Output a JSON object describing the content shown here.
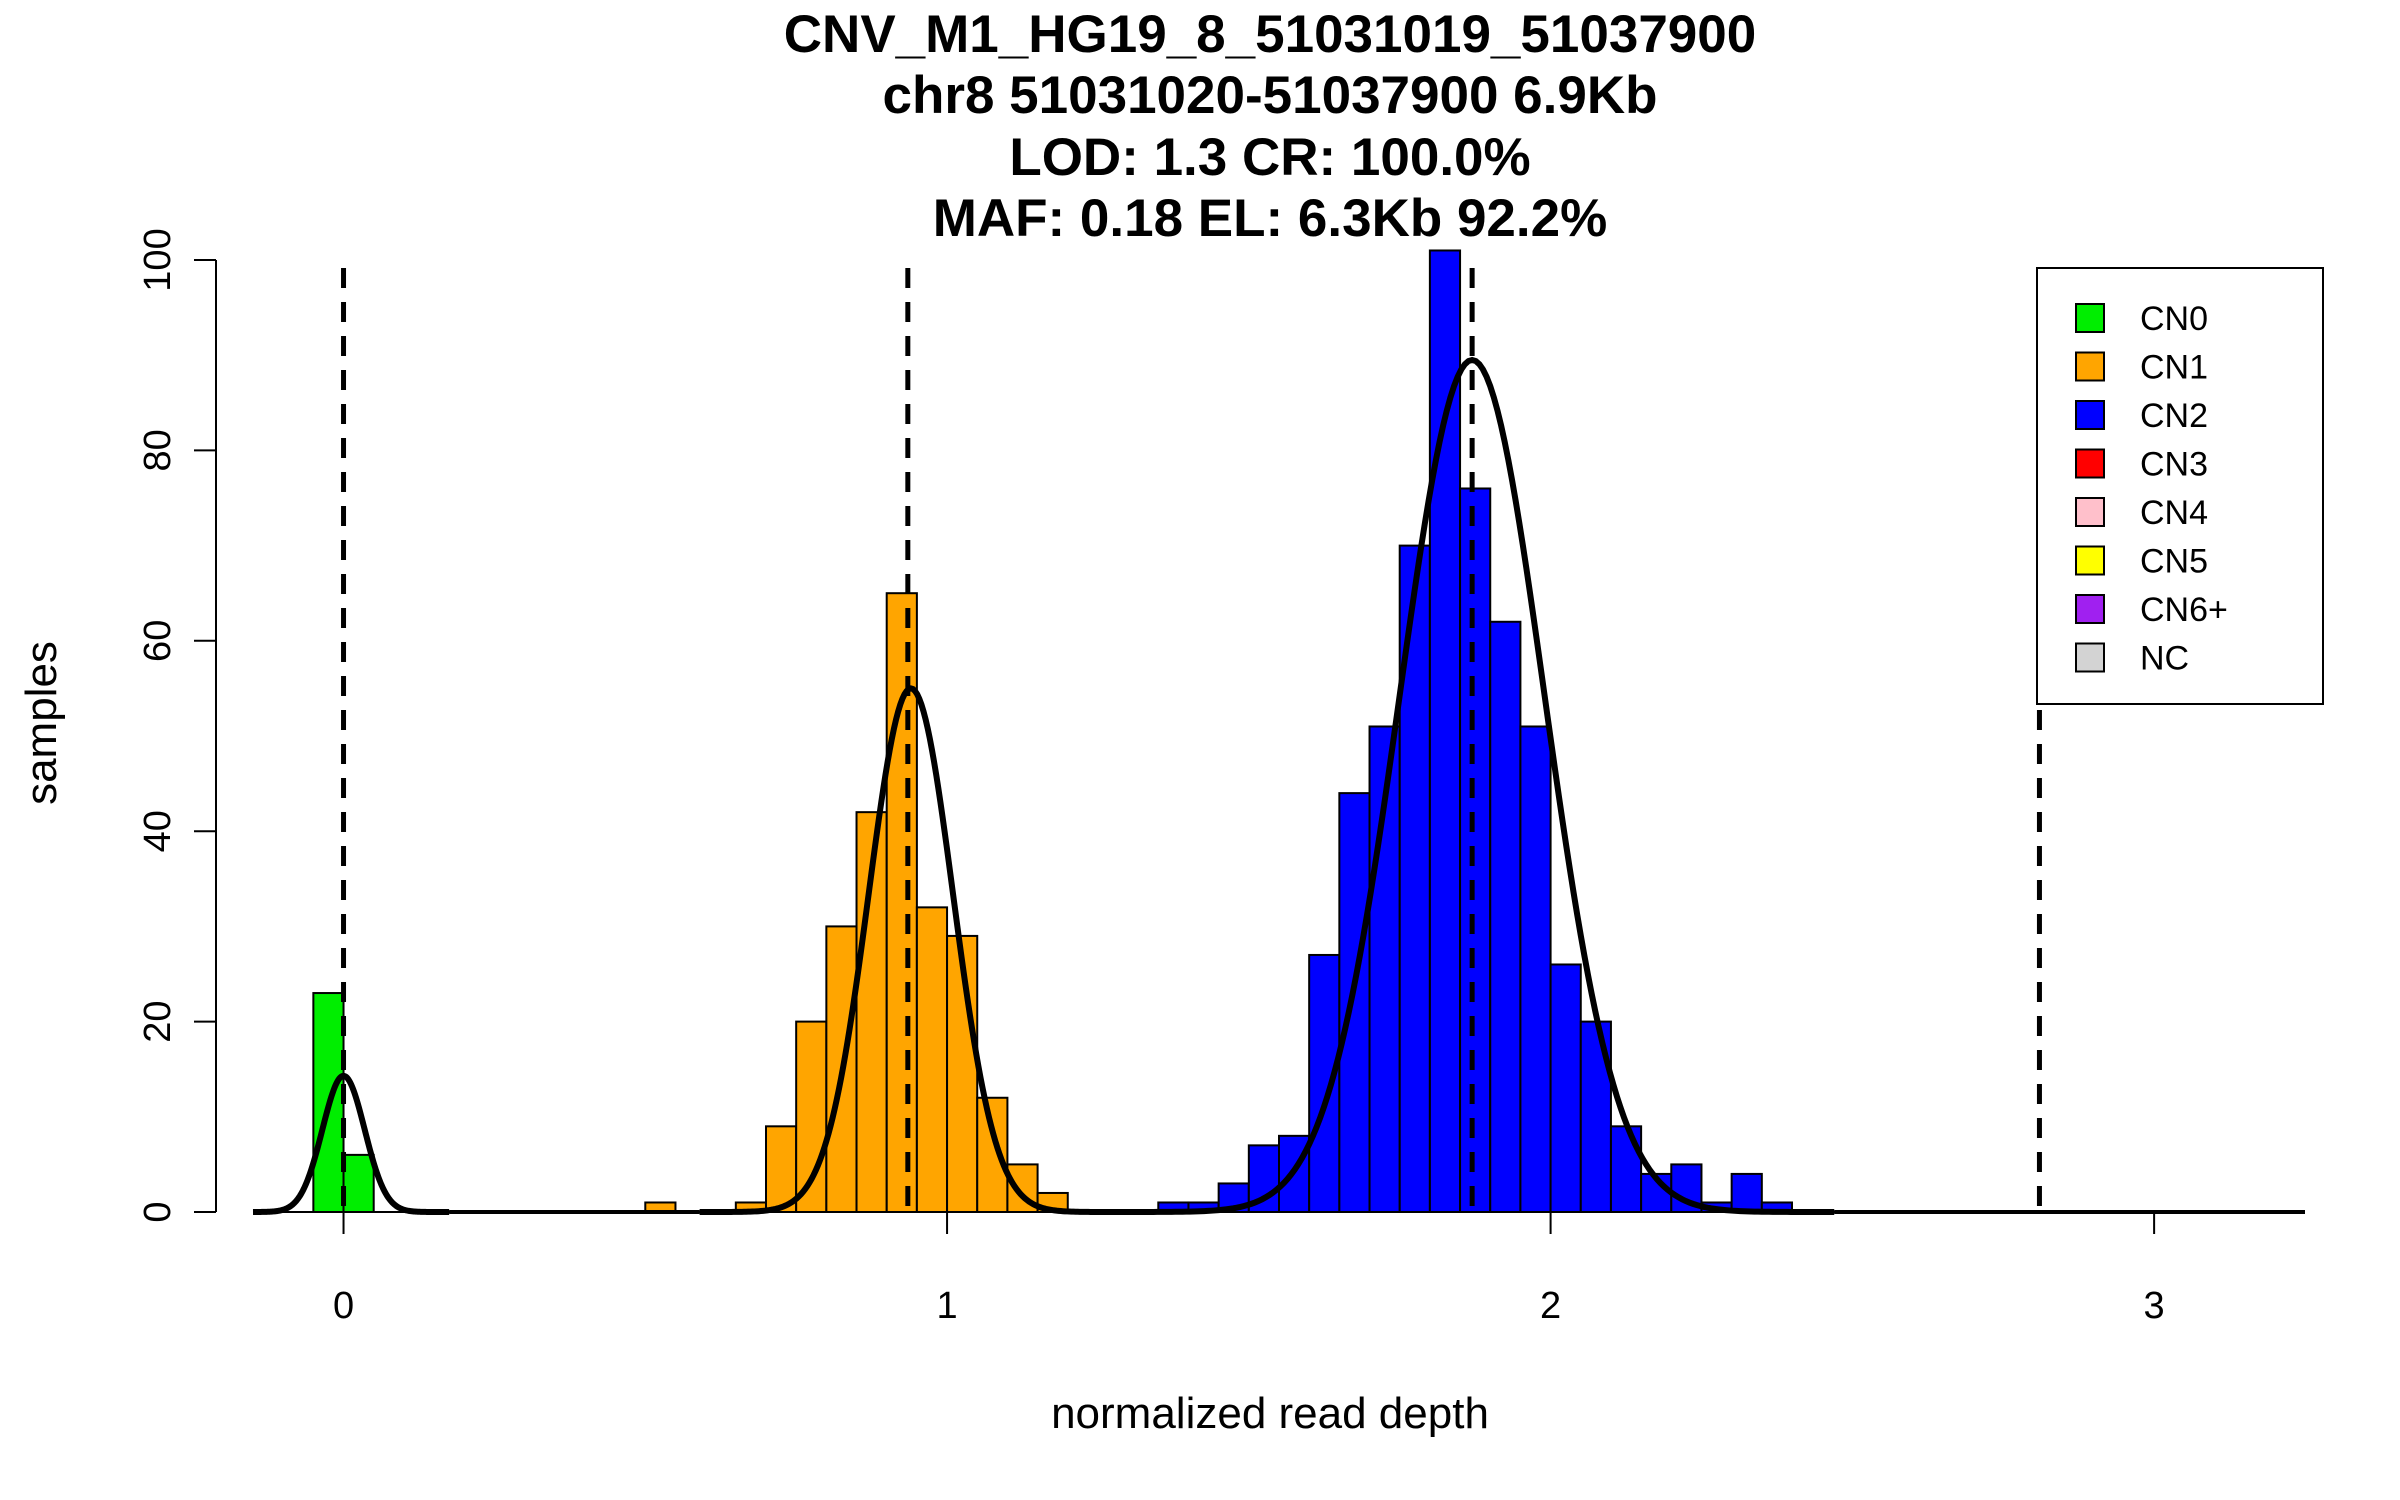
{
  "chart_data": {
    "type": "histogram",
    "title_lines": [
      "CNV_M1_HG19_8_51031019_51037900",
      "chr8 51031020-51037900 6.9Kb",
      "LOD: 1.3 CR: 100.0%",
      "MAF: 0.18 EL: 6.3Kb 92.2%"
    ],
    "xlabel": "normalized read depth",
    "ylabel": "samples",
    "xlim": [
      -0.15,
      3.25
    ],
    "ylim": [
      0,
      100
    ],
    "x_ticks": [
      0,
      1,
      2,
      3
    ],
    "x_tick_labels": [
      "0",
      "1",
      "2",
      "3"
    ],
    "y_ticks": [
      0,
      20,
      40,
      60,
      80,
      100
    ],
    "y_tick_labels": [
      "0",
      "20",
      "40",
      "60",
      "80",
      "100"
    ],
    "bin_width": 0.05,
    "series": [
      {
        "name": "CN0",
        "color": "#00ee00",
        "bins": [
          [
            -0.025,
            23
          ],
          [
            0.025,
            6
          ]
        ]
      },
      {
        "name": "CN1",
        "color": "#ffa500",
        "bins": [
          [
            0.525,
            1
          ],
          [
            0.675,
            1
          ],
          [
            0.725,
            9
          ],
          [
            0.775,
            20
          ],
          [
            0.825,
            30
          ],
          [
            0.875,
            42
          ],
          [
            0.925,
            65
          ],
          [
            0.975,
            32
          ],
          [
            1.025,
            29
          ],
          [
            1.075,
            12
          ],
          [
            1.125,
            5
          ],
          [
            1.175,
            2
          ]
        ]
      },
      {
        "name": "CN2",
        "color": "#0000ff",
        "bins": [
          [
            1.375,
            1
          ],
          [
            1.425,
            1
          ],
          [
            1.475,
            3
          ],
          [
            1.525,
            7
          ],
          [
            1.575,
            8
          ],
          [
            1.625,
            27
          ],
          [
            1.675,
            44
          ],
          [
            1.725,
            51
          ],
          [
            1.775,
            70
          ],
          [
            1.825,
            101
          ],
          [
            1.875,
            76
          ],
          [
            1.925,
            62
          ],
          [
            1.975,
            51
          ],
          [
            2.025,
            26
          ],
          [
            2.075,
            20
          ],
          [
            2.125,
            9
          ],
          [
            2.175,
            4
          ],
          [
            2.225,
            5
          ],
          [
            2.275,
            1
          ],
          [
            2.325,
            4
          ],
          [
            2.375,
            1
          ]
        ]
      },
      {
        "name": "CN3",
        "color": "#ff0000",
        "bins": []
      },
      {
        "name": "CN4",
        "color": "#ffc0cb",
        "bins": []
      },
      {
        "name": "CN5",
        "color": "#ffff00",
        "bins": []
      },
      {
        "name": "CN6+",
        "color": "#a020f0",
        "bins": []
      },
      {
        "name": "NC",
        "color": "#d3d3d3",
        "bins": []
      }
    ],
    "fit_curves": [
      {
        "mean": 0.0,
        "sd": 0.035,
        "peak": 14.3
      },
      {
        "mean": 0.94,
        "sd": 0.07,
        "peak": 55
      },
      {
        "mean": 1.87,
        "sd": 0.12,
        "peak": 89.5
      }
    ],
    "dashed_lines_x": [
      0,
      0.935,
      1.87,
      2.81
    ],
    "legend_position": "top-right"
  }
}
